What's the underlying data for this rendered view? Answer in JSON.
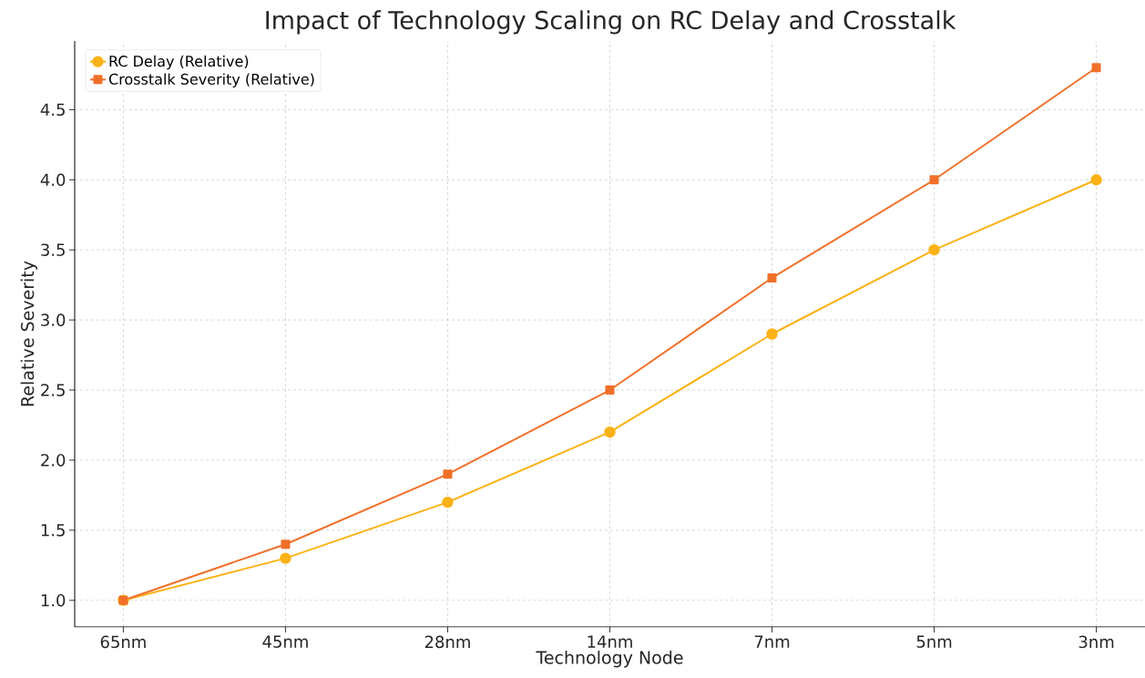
{
  "chart_data": {
    "type": "line",
    "title": "Impact of Technology Scaling on RC Delay and Crosstalk",
    "xlabel": "Technology Node",
    "ylabel": "Relative Severity",
    "categories": [
      "65nm",
      "45nm",
      "28nm",
      "14nm",
      "7nm",
      "5nm",
      "3nm"
    ],
    "series": [
      {
        "name": "RC Delay (Relative)",
        "color": "#fbb216",
        "marker": "circle",
        "values": [
          1.0,
          1.3,
          1.7,
          2.2,
          2.9,
          3.5,
          4.0
        ]
      },
      {
        "name": "Crosstalk Severity (Relative)",
        "color": "#f0702a",
        "marker": "square",
        "values": [
          1.0,
          1.4,
          1.9,
          2.5,
          3.3,
          4.0,
          4.8
        ]
      }
    ],
    "ylim": [
      0.81,
      4.99
    ],
    "yticks": [
      {
        "value": 1.0,
        "label": "1.0"
      },
      {
        "value": 1.5,
        "label": "1.5"
      },
      {
        "value": 2.0,
        "label": "2.0"
      },
      {
        "value": 2.5,
        "label": "2.5"
      },
      {
        "value": 3.0,
        "label": "3.0"
      },
      {
        "value": 3.5,
        "label": "3.5"
      },
      {
        "value": 4.0,
        "label": "4.0"
      },
      {
        "value": 4.5,
        "label": "4.5"
      }
    ],
    "grid": true,
    "legend": "top left",
    "line_style": "solid"
  }
}
